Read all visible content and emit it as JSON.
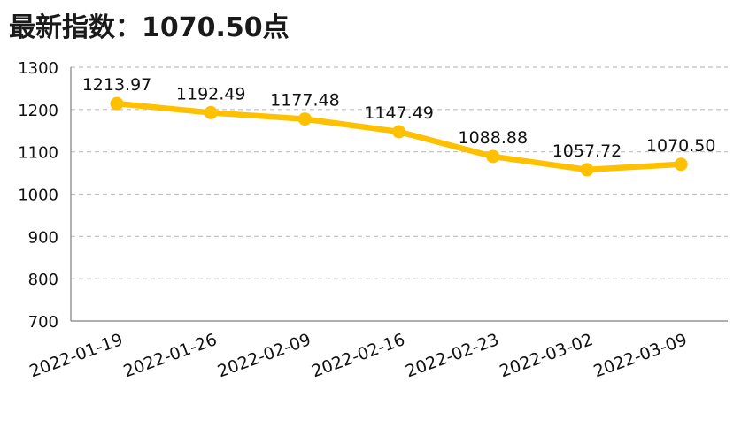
{
  "title": "最新指数：1070.50点",
  "chart_data": {
    "type": "line",
    "title": "最新指数：1070.50点",
    "xlabel": "",
    "ylabel": "",
    "categories": [
      "2022-01-19",
      "2022-01-26",
      "2022-02-09",
      "2022-02-16",
      "2022-02-23",
      "2022-03-02",
      "2022-03-09"
    ],
    "series": [
      {
        "values": [
          1213.97,
          1192.49,
          1177.48,
          1147.49,
          1088.88,
          1057.72,
          1070.5
        ],
        "labels": [
          "1213.97",
          "1192.49",
          "1177.48",
          "1147.49",
          "1088.88",
          "1057.72",
          "1070.50"
        ],
        "color": "#FFC000"
      }
    ],
    "ylim": [
      700,
      1300
    ],
    "yticks": [
      700,
      800,
      900,
      1000,
      1100,
      1200,
      1300
    ],
    "grid": true,
    "grid_style": "dashed",
    "legend": "none"
  }
}
